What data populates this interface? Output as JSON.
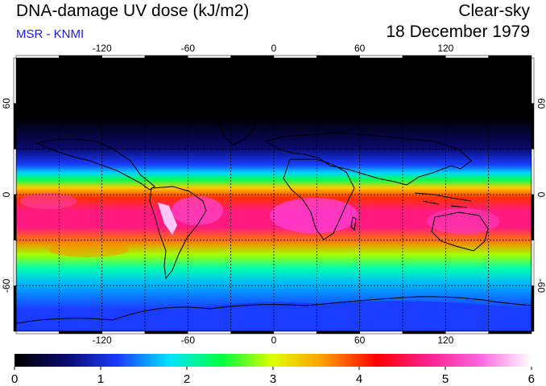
{
  "header": {
    "title": "DNA-damage UV dose (kJ/m2)",
    "subtitle": "MSR - KNMI",
    "sky": "Clear-sky",
    "date": "18 December 1979"
  },
  "map": {
    "lon_ticks": [
      "-120",
      "-60",
      "0",
      "60",
      "120"
    ],
    "lat_ticks": [
      "60",
      "0",
      "-60"
    ],
    "lon_range": [
      -180,
      180
    ],
    "lat_range": [
      -90,
      90
    ],
    "gridlines": true
  },
  "colorbar": {
    "labels": [
      "0",
      "1",
      "2",
      "3",
      "4",
      "5",
      "6"
    ],
    "range": [
      0,
      6
    ],
    "colors": [
      "#000000",
      "#0a0a6e",
      "#1a3cff",
      "#00e5ff",
      "#00ff40",
      "#e0ff00",
      "#ff9900",
      "#ff0000",
      "#ff1f8f",
      "#ff66e0",
      "#ffffff"
    ]
  }
}
